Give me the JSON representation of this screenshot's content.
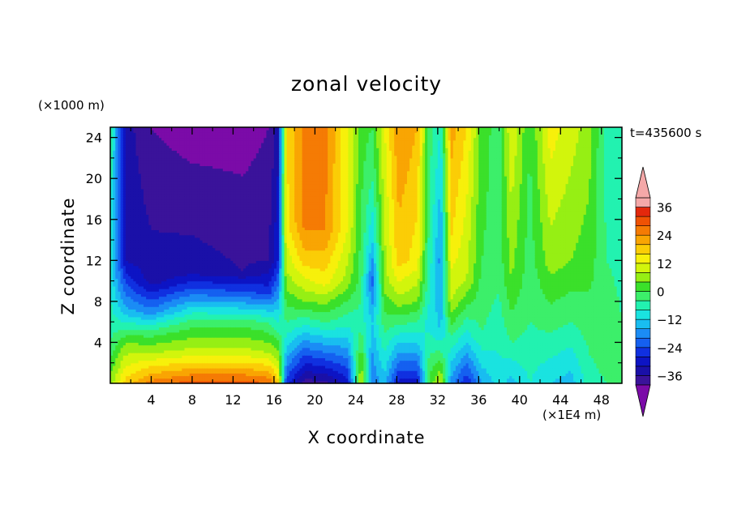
{
  "chart_data": {
    "type": "heatmap",
    "title": "zonal velocity",
    "xlabel": "X coordinate",
    "ylabel": "Z coordinate",
    "x_unit": "(×1E4 m)",
    "y_unit": "(×1000 m)",
    "time_label": "t=435600 s",
    "xlim": [
      0,
      50
    ],
    "ylim": [
      0,
      25
    ],
    "x_ticks": [
      4,
      8,
      12,
      16,
      20,
      24,
      28,
      32,
      36,
      40,
      44,
      48
    ],
    "y_ticks": [
      4,
      8,
      12,
      16,
      20,
      24
    ],
    "colorbar": {
      "ticks": [
        36,
        24,
        12,
        0,
        -12,
        -24,
        -36
      ],
      "levels": [
        -42,
        -36,
        -32,
        -28,
        -24,
        -20,
        -16,
        -12,
        -8,
        -4,
        0,
        4,
        8,
        12,
        16,
        20,
        24,
        28,
        32,
        36,
        40
      ],
      "colors": [
        "#7b0ba8",
        "#3a139a",
        "#1a10a8",
        "#0d14c4",
        "#1030e0",
        "#1560f0",
        "#1b8cf5",
        "#19bdf0",
        "#1ae3e0",
        "#22f2b0",
        "#3cef6a",
        "#3be02a",
        "#96ef14",
        "#d2f50c",
        "#f7f00b",
        "#fbcd06",
        "#f9a503",
        "#f57b04",
        "#ef5204",
        "#e3280c",
        "#f4a8a8"
      ]
    },
    "field": {
      "nx": 50,
      "ny": 25,
      "columns": [
        {
          "x": 0,
          "profile": [
            [
              0,
              10
            ],
            [
              4,
              0
            ],
            [
              10,
              -5
            ],
            [
              25,
              0
            ]
          ]
        },
        {
          "x": 1.5,
          "profile": [
            [
              0,
              22
            ],
            [
              4,
              8
            ],
            [
              7,
              -10
            ],
            [
              12,
              -28
            ],
            [
              25,
              -30
            ]
          ]
        },
        {
          "x": 4,
          "profile": [
            [
              0,
              30
            ],
            [
              3,
              12
            ],
            [
              5,
              2
            ],
            [
              7,
              -14
            ],
            [
              10,
              -30
            ],
            [
              25,
              -36
            ]
          ]
        },
        {
          "x": 8,
          "profile": [
            [
              0,
              34
            ],
            [
              3,
              14
            ],
            [
              6,
              2
            ],
            [
              9,
              -18
            ],
            [
              11,
              -30
            ],
            [
              25,
              -38
            ]
          ]
        },
        {
          "x": 13,
          "profile": [
            [
              0,
              34
            ],
            [
              3,
              14
            ],
            [
              6,
              2
            ],
            [
              9,
              -20
            ],
            [
              11,
              -32
            ],
            [
              25,
              -38
            ]
          ]
        },
        {
          "x": 15.5,
          "profile": [
            [
              0,
              32
            ],
            [
              3,
              12
            ],
            [
              6,
              0
            ],
            [
              9,
              -22
            ],
            [
              12,
              -32
            ],
            [
              25,
              -36
            ]
          ]
        },
        {
          "x": 16.4,
          "profile": [
            [
              0,
              22
            ],
            [
              6,
              -4
            ],
            [
              12,
              -24
            ],
            [
              25,
              -30
            ]
          ]
        },
        {
          "x": 17.2,
          "profile": [
            [
              0,
              -22
            ],
            [
              3,
              -10
            ],
            [
              6,
              0
            ],
            [
              10,
              10
            ],
            [
              15,
              18
            ],
            [
              25,
              20
            ]
          ]
        },
        {
          "x": 19,
          "profile": [
            [
              0,
              -34
            ],
            [
              2,
              -24
            ],
            [
              5,
              -8
            ],
            [
              8,
              8
            ],
            [
              12,
              22
            ],
            [
              16,
              30
            ],
            [
              25,
              30
            ]
          ]
        },
        {
          "x": 21,
          "profile": [
            [
              0,
              -34
            ],
            [
              2,
              -22
            ],
            [
              6,
              0
            ],
            [
              10,
              18
            ],
            [
              15,
              28
            ],
            [
              25,
              30
            ]
          ]
        },
        {
          "x": 23.2,
          "profile": [
            [
              0,
              -26
            ],
            [
              5,
              -6
            ],
            [
              10,
              10
            ],
            [
              15,
              16
            ],
            [
              25,
              16
            ]
          ]
        },
        {
          "x": 24.5,
          "profile": [
            [
              0,
              14
            ],
            [
              6,
              -2
            ],
            [
              10,
              2
            ],
            [
              16,
              4
            ],
            [
              25,
              6
            ]
          ]
        },
        {
          "x": 25.6,
          "profile": [
            [
              0,
              -16
            ],
            [
              6,
              -8
            ],
            [
              10,
              -18
            ],
            [
              14,
              -8
            ],
            [
              20,
              0
            ],
            [
              25,
              4
            ]
          ]
        },
        {
          "x": 26.8,
          "profile": [
            [
              0,
              -10
            ],
            [
              6,
              2
            ],
            [
              10,
              10
            ],
            [
              25,
              16
            ]
          ]
        },
        {
          "x": 28.2,
          "profile": [
            [
              0,
              -26
            ],
            [
              4,
              -8
            ],
            [
              8,
              10
            ],
            [
              12,
              22
            ],
            [
              25,
              28
            ]
          ]
        },
        {
          "x": 30,
          "profile": [
            [
              0,
              -26
            ],
            [
              4,
              -8
            ],
            [
              8,
              8
            ],
            [
              12,
              18
            ],
            [
              25,
              24
            ]
          ]
        },
        {
          "x": 31.2,
          "profile": [
            [
              0,
              6
            ],
            [
              6,
              -6
            ],
            [
              12,
              -2
            ],
            [
              25,
              2
            ]
          ]
        },
        {
          "x": 32.3,
          "profile": [
            [
              0,
              14
            ],
            [
              5,
              -8
            ],
            [
              12,
              -14
            ],
            [
              25,
              -4
            ]
          ]
        },
        {
          "x": 33.3,
          "profile": [
            [
              0,
              -14
            ],
            [
              4,
              -2
            ],
            [
              8,
              12
            ],
            [
              14,
              20
            ],
            [
              25,
              26
            ]
          ]
        },
        {
          "x": 34.8,
          "profile": [
            [
              0,
              -24
            ],
            [
              4,
              -8
            ],
            [
              10,
              12
            ],
            [
              25,
              20
            ]
          ]
        },
        {
          "x": 36.3,
          "profile": [
            [
              0,
              -12
            ],
            [
              5,
              0
            ],
            [
              12,
              4
            ],
            [
              25,
              6
            ]
          ]
        },
        {
          "x": 38,
          "profile": [
            [
              0,
              -6
            ],
            [
              6,
              -2
            ],
            [
              12,
              2
            ],
            [
              25,
              2
            ]
          ]
        },
        {
          "x": 39.2,
          "profile": [
            [
              0,
              -10
            ],
            [
              4,
              0
            ],
            [
              10,
              8
            ],
            [
              25,
              16
            ]
          ]
        },
        {
          "x": 41,
          "profile": [
            [
              0,
              -4
            ],
            [
              6,
              0
            ],
            [
              12,
              2
            ],
            [
              25,
              4
            ]
          ]
        },
        {
          "x": 43,
          "profile": [
            [
              0,
              -8
            ],
            [
              5,
              0
            ],
            [
              12,
              10
            ],
            [
              25,
              18
            ]
          ]
        },
        {
          "x": 45,
          "profile": [
            [
              0,
              -10
            ],
            [
              6,
              0
            ],
            [
              12,
              8
            ],
            [
              25,
              14
            ]
          ]
        },
        {
          "x": 46.8,
          "profile": [
            [
              0,
              -2
            ],
            [
              6,
              2
            ],
            [
              12,
              6
            ],
            [
              25,
              10
            ]
          ]
        },
        {
          "x": 48.5,
          "profile": [
            [
              0,
              0
            ],
            [
              6,
              4
            ],
            [
              12,
              0
            ],
            [
              25,
              -2
            ]
          ]
        },
        {
          "x": 50,
          "profile": [
            [
              0,
              0
            ],
            [
              6,
              0
            ],
            [
              12,
              -2
            ],
            [
              25,
              -2
            ]
          ]
        }
      ]
    }
  }
}
